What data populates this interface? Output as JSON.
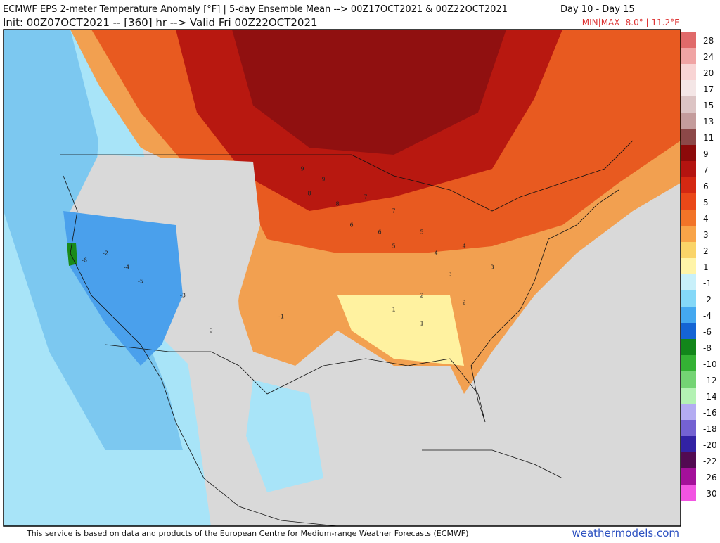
{
  "header": {
    "title": "ECMWF EPS 2-meter Temperature Anomaly [°F] | 5-day Ensemble Mean --> 00Z17OCT2021 & 00Z22OCT2021",
    "days": "Day 10 - Day 15",
    "init": "Init: 00Z07OCT2021 -- [360] hr --> Valid Fri 00Z22OCT2021",
    "minmax": "MIN|MAX -8.0° | 11.2°F"
  },
  "colorbar": [
    {
      "value": 28,
      "color": "#e06a6a"
    },
    {
      "value": 24,
      "color": "#f0a4a4"
    },
    {
      "value": 20,
      "color": "#f8d4d4"
    },
    {
      "value": 17,
      "color": "#f4e6e6"
    },
    {
      "value": 15,
      "color": "#dcc4c4"
    },
    {
      "value": 13,
      "color": "#c49c9c"
    },
    {
      "value": 11,
      "color": "#8c4848"
    },
    {
      "value": 9,
      "color": "#8c0a0a"
    },
    {
      "value": 7,
      "color": "#b41410"
    },
    {
      "value": 6,
      "color": "#d42812"
    },
    {
      "value": 5,
      "color": "#ea4818"
    },
    {
      "value": 4,
      "color": "#f27428"
    },
    {
      "value": 3,
      "color": "#f8a448"
    },
    {
      "value": 2,
      "color": "#fad468"
    },
    {
      "value": 1,
      "color": "#fff4a8"
    },
    {
      "value": -1,
      "color": "#c8f0fa"
    },
    {
      "value": -2,
      "color": "#84d8f8"
    },
    {
      "value": -4,
      "color": "#44a8f0"
    },
    {
      "value": -6,
      "color": "#1464d4"
    },
    {
      "value": -8,
      "color": "#12861a"
    },
    {
      "value": -10,
      "color": "#34b234"
    },
    {
      "value": -12,
      "color": "#74d474"
    },
    {
      "value": -14,
      "color": "#b4f2b4"
    },
    {
      "value": -16,
      "color": "#b4acf2"
    },
    {
      "value": -18,
      "color": "#7462d2"
    },
    {
      "value": -20,
      "color": "#3222a4"
    },
    {
      "value": -22,
      "color": "#520a52"
    },
    {
      "value": -26,
      "color": "#a4109a"
    },
    {
      "value": -30,
      "color": "#f254e2"
    }
  ],
  "stations": [
    9,
    9,
    8,
    8,
    7,
    7,
    6,
    6,
    5,
    5,
    4,
    4,
    3,
    3,
    2,
    2,
    1,
    1,
    -1,
    -2,
    -4,
    -5,
    -6,
    -3,
    0
  ],
  "footer": {
    "credit": "This service is based on data and products of the European Centre for Medium-range Weather Forecasts (ECMWF)",
    "site": "weathermodels.com"
  }
}
